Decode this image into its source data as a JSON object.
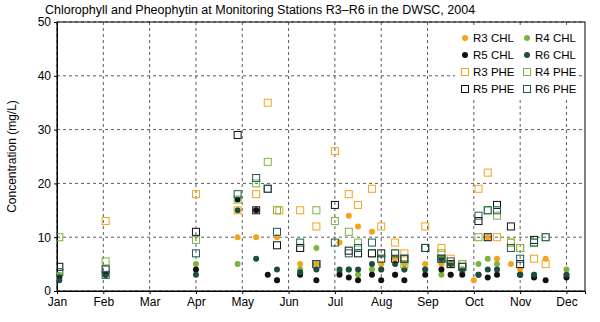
{
  "chart_data": {
    "type": "scatter",
    "title": "Chlorophyll and Pheophytin at Monitoring Stations R3–R6 in the DWSC, 2004",
    "y_label": "Concentration (mg/L)",
    "xlim": [
      0,
      11.4
    ],
    "xticks": [
      {
        "value": 0,
        "label": "Jan"
      },
      {
        "value": 1,
        "label": "Feb"
      },
      {
        "value": 2,
        "label": "Mar"
      },
      {
        "value": 3,
        "label": "Apr"
      },
      {
        "value": 4,
        "label": "May"
      },
      {
        "value": 5,
        "label": "Jun"
      },
      {
        "value": 6,
        "label": "Jul"
      },
      {
        "value": 7,
        "label": "Aug"
      },
      {
        "value": 8,
        "label": "Sep"
      },
      {
        "value": 9,
        "label": "Oct"
      },
      {
        "value": 10,
        "label": "Nov"
      },
      {
        "value": 11,
        "label": "Dec"
      }
    ],
    "ylim": [
      0,
      50
    ],
    "yticks": [
      0,
      10,
      20,
      30,
      40,
      50
    ],
    "grid": true,
    "legend": "upper right",
    "series": [
      {
        "name": "R3 CHL",
        "color": "#f5a31a",
        "marker": "circle",
        "x": [
          3.9,
          4.3,
          4.75,
          5.25,
          5.6,
          6.1,
          6.3,
          6.5,
          6.8,
          7.0,
          7.3,
          7.5,
          7.95,
          8.3,
          8.5,
          8.75,
          9.0,
          9.3,
          9.5,
          9.8,
          10.0,
          10.55,
          11.0
        ],
        "values": [
          10,
          10,
          10,
          5,
          5,
          9,
          14,
          12,
          11,
          5,
          6,
          5,
          5,
          5,
          5,
          4,
          2,
          10,
          6,
          5,
          4,
          6,
          3
        ]
      },
      {
        "name": "R4 CHL",
        "color": "#7ab53f",
        "marker": "circle",
        "x": [
          0.05,
          1.05,
          3.0,
          3.9,
          4.3,
          4.75,
          5.25,
          5.6,
          6.1,
          6.3,
          6.5,
          6.8,
          7.0,
          7.3,
          7.5,
          7.95,
          8.3,
          8.5,
          8.75,
          9.1,
          9.3,
          9.5,
          10.0,
          10.3,
          11.0
        ],
        "values": [
          3,
          3,
          5,
          5,
          15,
          2,
          4,
          8,
          3.5,
          4,
          3,
          4,
          4,
          3,
          4,
          4,
          3,
          3,
          3.5,
          5,
          6,
          5,
          3,
          3,
          4
        ]
      },
      {
        "name": "R5 CHL",
        "color": "#111111",
        "marker": "circle",
        "x": [
          0.05,
          1.05,
          3.0,
          3.9,
          4.3,
          4.55,
          4.75,
          5.25,
          5.6,
          6.1,
          6.3,
          6.5,
          6.8,
          7.0,
          7.3,
          7.5,
          7.95,
          8.3,
          8.5,
          8.75,
          9.1,
          9.3,
          9.5,
          10.0,
          10.3,
          10.55,
          11.0
        ],
        "values": [
          2.5,
          3,
          4,
          17,
          15,
          3,
          2,
          3,
          2,
          3,
          2.5,
          2,
          3,
          2,
          3,
          2,
          3,
          4,
          3,
          3,
          3,
          2.5,
          3,
          3,
          2.5,
          2,
          2.5
        ]
      },
      {
        "name": "R6 CHL",
        "color": "#1d4d3c",
        "marker": "circle",
        "x": [
          0.05,
          1.05,
          3.0,
          3.9,
          4.3,
          4.75,
          5.25,
          5.6,
          6.1,
          6.3,
          6.5,
          6.8,
          7.0,
          7.3,
          7.5,
          7.95,
          8.3,
          8.5,
          8.75,
          9.1,
          9.3,
          9.5,
          10.0,
          10.3,
          11.0
        ],
        "values": [
          2,
          3,
          3,
          15,
          6,
          4,
          3.5,
          4,
          4,
          4,
          4,
          5,
          4,
          5,
          4,
          4,
          6,
          5,
          4,
          3,
          4,
          4,
          3,
          3,
          3
        ]
      },
      {
        "name": "R3 PHE",
        "color": "#f5a31a",
        "marker": "square-open",
        "x": [
          1.05,
          3.0,
          3.9,
          4.3,
          4.55,
          4.8,
          5.25,
          5.6,
          6.0,
          6.3,
          6.5,
          6.8,
          7.0,
          7.3,
          7.5,
          7.95,
          8.3,
          8.5,
          8.75,
          9.1,
          9.3,
          9.5,
          9.8,
          10.0,
          10.3,
          10.55
        ],
        "values": [
          13,
          18,
          15,
          18,
          35,
          15,
          15,
          12,
          26,
          18,
          16,
          19,
          12,
          9,
          7,
          12,
          8,
          6,
          5,
          19,
          22,
          10,
          9,
          8,
          6,
          5
        ]
      },
      {
        "name": "R4 PHE",
        "color": "#7ab53f",
        "marker": "square-open",
        "x": [
          0.05,
          1.05,
          3.0,
          3.9,
          4.3,
          4.55,
          4.75,
          5.25,
          5.6,
          6.0,
          6.3,
          6.5,
          6.8,
          7.0,
          7.3,
          7.5,
          7.95,
          8.3,
          8.5,
          8.75,
          9.1,
          9.3,
          9.5,
          9.8,
          10.0,
          10.3,
          10.55
        ],
        "values": [
          10,
          5.5,
          9.5,
          17,
          20,
          24,
          15,
          8,
          15,
          13,
          11,
          9,
          7,
          6,
          7,
          5,
          8,
          7,
          5,
          5,
          10,
          15,
          14,
          9,
          8,
          9,
          10
        ]
      },
      {
        "name": "R5 PHE",
        "color": "#111111",
        "marker": "square-open",
        "x": [
          0.05,
          1.05,
          3.0,
          3.9,
          4.3,
          4.55,
          4.75,
          5.25,
          5.6,
          6.0,
          6.3,
          6.5,
          6.8,
          7.0,
          7.3,
          7.5,
          7.95,
          8.3,
          8.5,
          8.75,
          9.1,
          9.3,
          9.5,
          9.8,
          10.0,
          10.3
        ],
        "values": [
          4.5,
          4,
          11,
          29,
          15,
          19,
          8.5,
          8,
          5,
          16,
          7.5,
          7,
          7,
          7,
          6,
          6,
          8,
          6,
          5,
          4.5,
          13,
          10,
          16,
          12,
          5,
          9.5
        ]
      },
      {
        "name": "R6 PHE",
        "color": "#1d5a50",
        "marker": "square-open",
        "x": [
          0.05,
          1.05,
          3.0,
          3.9,
          4.3,
          4.55,
          4.75,
          5.25,
          5.6,
          6.0,
          6.3,
          6.5,
          6.8,
          7.0,
          7.3,
          7.5,
          7.95,
          8.3,
          8.5,
          8.75,
          9.1,
          9.3,
          9.5,
          9.8,
          10.0,
          10.3,
          10.55
        ],
        "values": [
          3.5,
          3,
          7,
          18,
          21,
          19,
          11,
          9,
          5,
          9,
          7,
          8,
          9,
          6,
          7,
          6,
          8,
          6,
          5.5,
          4.5,
          14,
          15,
          15,
          8,
          6,
          9,
          10
        ]
      }
    ]
  }
}
